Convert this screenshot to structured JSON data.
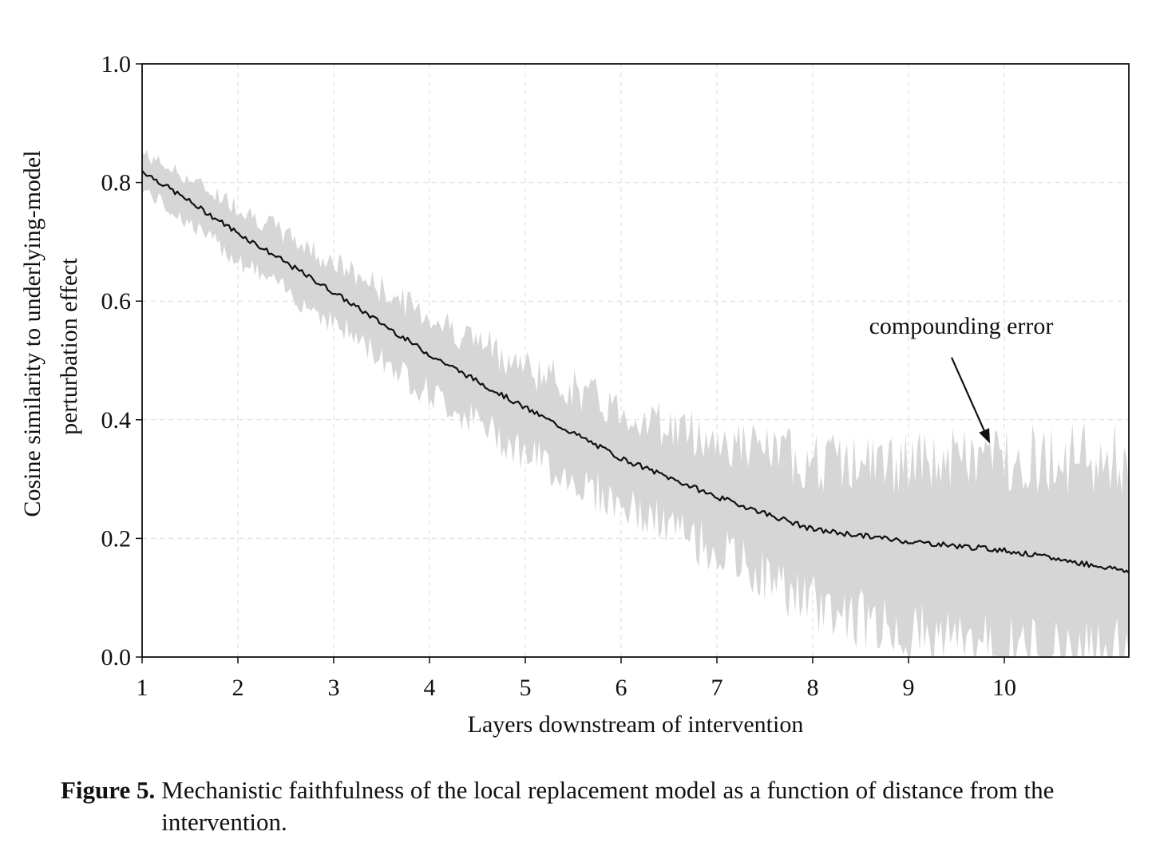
{
  "figure": {
    "label": "Figure 5.",
    "caption": "Mechanistic faithfulness of the local replacement model as a function of distance from the intervention."
  },
  "chart_data": {
    "type": "line",
    "title": "",
    "xlabel": "Layers downstream of intervention",
    "ylabel_line1": "Cosine similarity to underlying-model",
    "ylabel_line2": "perturbation effect",
    "xlim": [
      1,
      11.3
    ],
    "ylim": [
      0.0,
      1.0
    ],
    "xticks": [
      1,
      2,
      3,
      4,
      5,
      6,
      7,
      8,
      9,
      10
    ],
    "xtick_labels": [
      "1",
      "2",
      "3",
      "4",
      "5",
      "6",
      "7",
      "8",
      "9",
      "10"
    ],
    "yticks": [
      0.0,
      0.2,
      0.4,
      0.6,
      0.8,
      1.0
    ],
    "ytick_labels": [
      "0.0",
      "0.2",
      "0.4",
      "0.6",
      "0.8",
      "1.0"
    ],
    "grid": true,
    "x": [
      1.0,
      2.0,
      3.0,
      4.0,
      5.0,
      6.0,
      7.0,
      8.0,
      9.0,
      10.0,
      11.3
    ],
    "mean": [
      0.82,
      0.715,
      0.615,
      0.51,
      0.42,
      0.335,
      0.27,
      0.215,
      0.195,
      0.18,
      0.145
    ],
    "upper": [
      0.85,
      0.76,
      0.665,
      0.575,
      0.49,
      0.415,
      0.365,
      0.33,
      0.325,
      0.34,
      0.33
    ],
    "lower": [
      0.79,
      0.67,
      0.565,
      0.445,
      0.345,
      0.255,
      0.18,
      0.09,
      0.04,
      0.01,
      0.0
    ],
    "band_color": "#d6d6d6",
    "line_color": "#111111",
    "annotation": {
      "text": "compounding error",
      "text_x": 9.55,
      "text_y": 0.545,
      "arrow_from_x": 9.45,
      "arrow_from_y": 0.505,
      "arrow_to_x": 9.85,
      "arrow_to_y": 0.36
    }
  }
}
